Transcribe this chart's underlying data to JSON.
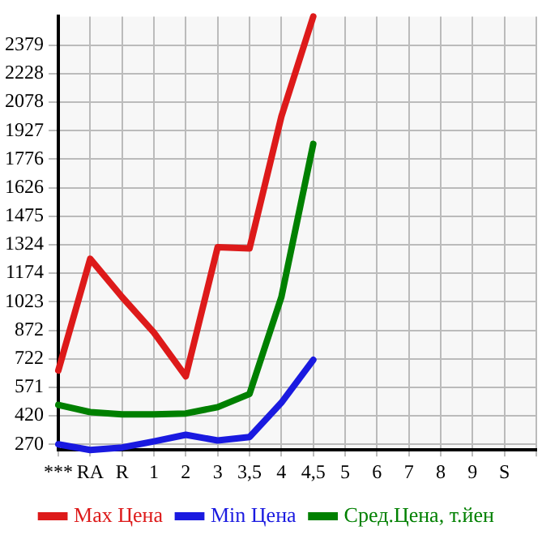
{
  "chart_data": {
    "type": "line",
    "categories": [
      "***",
      "RA",
      "R",
      "1",
      "2",
      "3",
      "3,5",
      "4",
      "4,5",
      "5",
      "6",
      "7",
      "8",
      "9",
      "S",
      null
    ],
    "series": [
      {
        "name": "Max Цена",
        "color": "#dd1a1a",
        "values": [
          660,
          1250,
          1048,
          860,
          629,
          1311,
          1305,
          2002,
          2530,
          null,
          null,
          null,
          null,
          null,
          null,
          null
        ]
      },
      {
        "name": "Min Цена",
        "color": "#1a1ae0",
        "values": [
          270,
          240,
          253,
          285,
          320,
          290,
          308,
          490,
          716,
          null,
          null,
          null,
          null,
          null,
          null,
          null
        ]
      },
      {
        "name": "Сред.Цена, т.йен",
        "color": "#008000",
        "values": [
          478,
          440,
          428,
          428,
          433,
          466,
          536,
          1048,
          1857,
          null,
          null,
          null,
          null,
          null,
          null,
          null
        ]
      }
    ],
    "ylim": [
      240,
      2530
    ],
    "yticks": [
      270,
      420,
      571,
      722,
      872,
      1023,
      1174,
      1324,
      1475,
      1626,
      1776,
      1927,
      2078,
      2228,
      2379
    ],
    "grid": true,
    "legend": "bottom",
    "marker": "none",
    "line_style": "solid"
  }
}
